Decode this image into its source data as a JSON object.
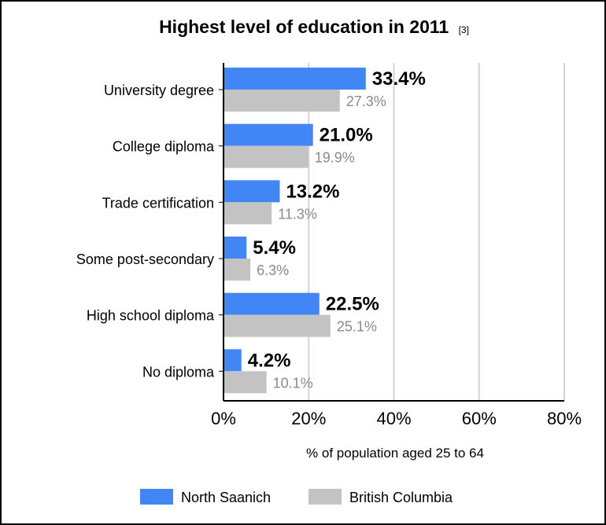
{
  "chart_data": {
    "type": "bar",
    "orientation": "horizontal",
    "title": "Highest level of education in 2011",
    "title_ref": "[3]",
    "categories": [
      "University degree",
      "College diploma",
      "Trade certification",
      "Some post-secondary",
      "High school diploma",
      "No diploma"
    ],
    "series": [
      {
        "name": "North Saanich",
        "color": "#4285f4",
        "values": [
          33.4,
          21.0,
          13.2,
          5.4,
          22.5,
          4.2
        ],
        "labels": [
          "33.4%",
          "21.0%",
          "13.2%",
          "5.4%",
          "22.5%",
          "4.2%"
        ]
      },
      {
        "name": "British Columbia",
        "color": "#c3c3c3",
        "values": [
          27.3,
          19.9,
          11.3,
          6.3,
          25.1,
          10.1
        ],
        "labels": [
          "27.3%",
          "19.9%",
          "11.3%",
          "6.3%",
          "25.1%",
          "10.1%"
        ]
      }
    ],
    "xlabel": "% of population aged 25 to 64",
    "xlim": [
      0,
      80
    ],
    "xticks": [
      0,
      20,
      40,
      60,
      80
    ],
    "xtick_labels": [
      "0%",
      "20%",
      "40%",
      "60%",
      "80%"
    ],
    "grid": true,
    "legend": "bottom"
  }
}
